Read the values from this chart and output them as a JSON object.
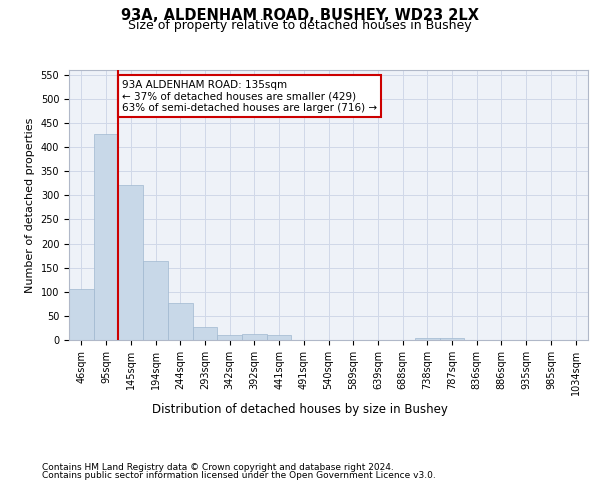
{
  "title1": "93A, ALDENHAM ROAD, BUSHEY, WD23 2LX",
  "title2": "Size of property relative to detached houses in Bushey",
  "xlabel": "Distribution of detached houses by size in Bushey",
  "ylabel": "Number of detached properties",
  "footer1": "Contains HM Land Registry data © Crown copyright and database right 2024.",
  "footer2": "Contains public sector information licensed under the Open Government Licence v3.0.",
  "categories": [
    "46sqm",
    "95sqm",
    "145sqm",
    "194sqm",
    "244sqm",
    "293sqm",
    "342sqm",
    "392sqm",
    "441sqm",
    "491sqm",
    "540sqm",
    "589sqm",
    "639sqm",
    "688sqm",
    "738sqm",
    "787sqm",
    "836sqm",
    "886sqm",
    "935sqm",
    "985sqm",
    "1034sqm"
  ],
  "values": [
    105,
    428,
    322,
    163,
    76,
    27,
    11,
    12,
    11,
    0,
    0,
    0,
    0,
    0,
    5,
    5,
    0,
    0,
    0,
    0,
    0
  ],
  "bar_color": "#c8d8e8",
  "bar_edge_color": "#a0b8d0",
  "vline_x": 2,
  "vline_color": "#cc0000",
  "annotation_text": "93A ALDENHAM ROAD: 135sqm\n← 37% of detached houses are smaller (429)\n63% of semi-detached houses are larger (716) →",
  "annotation_box_color": "#ffffff",
  "annotation_box_edge": "#cc0000",
  "ylim": [
    0,
    560
  ],
  "yticks": [
    0,
    50,
    100,
    150,
    200,
    250,
    300,
    350,
    400,
    450,
    500,
    550
  ],
  "grid_color": "#d0d8e8",
  "bg_color": "#eef2f8",
  "title1_fontsize": 10.5,
  "title2_fontsize": 9,
  "xlabel_fontsize": 8.5,
  "ylabel_fontsize": 8,
  "tick_fontsize": 7,
  "footer_fontsize": 6.5,
  "annotation_fontsize": 7.5
}
